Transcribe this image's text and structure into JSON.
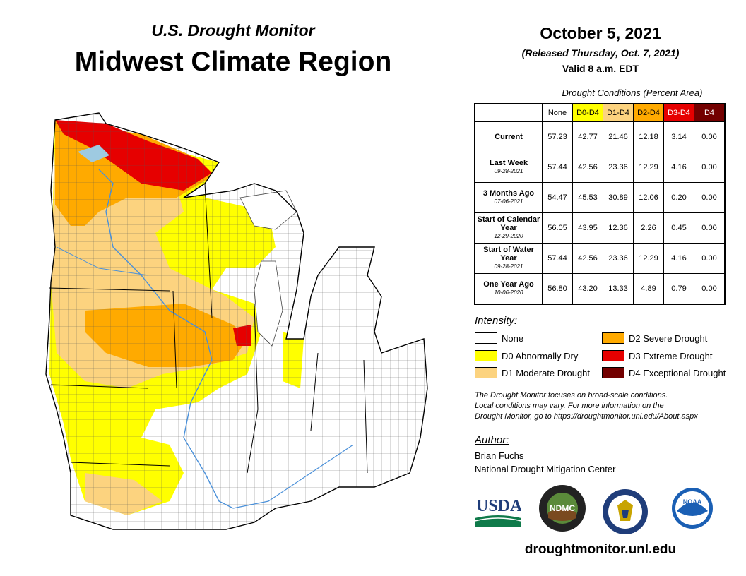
{
  "header": {
    "subtitle": "U.S. Drought Monitor",
    "title": "Midwest Climate Region",
    "date": "October 5, 2021",
    "released": "(Released Thursday, Oct. 7, 2021)",
    "valid": "Valid 8 a.m. EDT"
  },
  "table": {
    "caption": "Drought Conditions (Percent Area)",
    "columns": [
      {
        "label": "None",
        "color": "#ffffff"
      },
      {
        "label": "D0-D4",
        "color": "#ffff00"
      },
      {
        "label": "D1-D4",
        "color": "#fcd37f"
      },
      {
        "label": "D2-D4",
        "color": "#ffaa00"
      },
      {
        "label": "D3-D4",
        "color": "#e60000"
      },
      {
        "label": "D4",
        "color": "#730000"
      }
    ],
    "rows": [
      {
        "label": "Current",
        "date": "",
        "values": [
          "57.23",
          "42.77",
          "21.46",
          "12.18",
          "3.14",
          "0.00"
        ]
      },
      {
        "label": "Last Week",
        "date": "09-28-2021",
        "values": [
          "57.44",
          "42.56",
          "23.36",
          "12.29",
          "4.16",
          "0.00"
        ]
      },
      {
        "label": "3 Months Ago",
        "date": "07-06-2021",
        "values": [
          "54.47",
          "45.53",
          "30.89",
          "12.06",
          "0.20",
          "0.00"
        ]
      },
      {
        "label": "Start of Calendar Year",
        "date": "12-29-2020",
        "values": [
          "56.05",
          "43.95",
          "12.36",
          "2.26",
          "0.45",
          "0.00"
        ]
      },
      {
        "label": "Start of Water Year",
        "date": "09-28-2021",
        "values": [
          "57.44",
          "42.56",
          "23.36",
          "12.29",
          "4.16",
          "0.00"
        ]
      },
      {
        "label": "One Year Ago",
        "date": "10-06-2020",
        "values": [
          "56.80",
          "43.20",
          "13.33",
          "4.89",
          "0.79",
          "0.00"
        ]
      }
    ]
  },
  "legend": {
    "title": "Intensity:",
    "items": [
      {
        "label": "None",
        "color": "#ffffff"
      },
      {
        "label": "D0 Abnormally Dry",
        "color": "#ffff00"
      },
      {
        "label": "D1 Moderate Drought",
        "color": "#fcd37f"
      },
      {
        "label": "D2 Severe Drought",
        "color": "#ffaa00"
      },
      {
        "label": "D3 Extreme Drought",
        "color": "#e60000"
      },
      {
        "label": "D4 Exceptional Drought",
        "color": "#730000"
      }
    ]
  },
  "note": {
    "line1": "The Drought Monitor focuses on broad-scale conditions.",
    "line2": "Local conditions may vary. For more information on the",
    "line3": "Drought Monitor, go to https://droughtmonitor.unl.edu/About.aspx"
  },
  "author": {
    "label": "Author:",
    "name": "Brian Fuchs",
    "org": "National Drought Mitigation Center"
  },
  "logos": {
    "usda": "USDA",
    "ndmc": "NDMC",
    "noaa": "NOAA"
  },
  "website": "droughtmonitor.unl.edu",
  "map": {
    "water_color": "#9ecae1",
    "river_color": "#4a90d9"
  }
}
